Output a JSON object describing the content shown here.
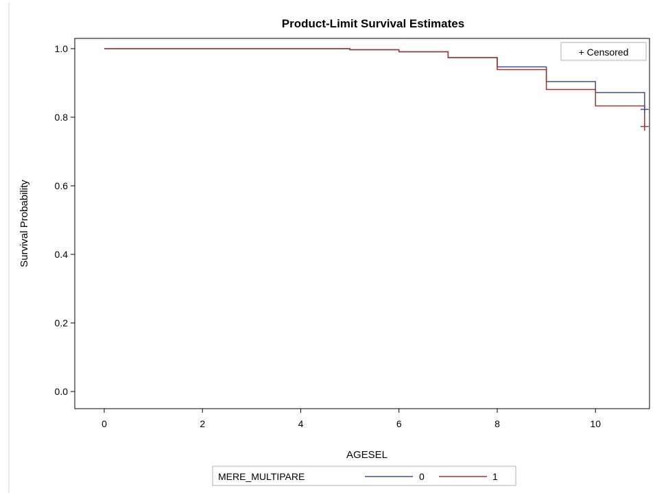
{
  "chart_data": {
    "type": "line",
    "title": "Product-Limit Survival Estimates",
    "xlabel": "AGESEL",
    "ylabel": "Survival Probability",
    "xlim": [
      -0.6,
      11.1
    ],
    "ylim": [
      -0.05,
      1.03
    ],
    "xticks": [
      0,
      2,
      4,
      6,
      8,
      10
    ],
    "yticks": [
      0.0,
      0.2,
      0.4,
      0.6,
      0.8,
      1.0
    ],
    "grid": false,
    "censored_legend": "+ Censored",
    "legend": {
      "title": "MERE_MULTIPARE",
      "placement": "bottom"
    },
    "series": [
      {
        "name": "0",
        "color": "#3a4f96",
        "steps": [
          [
            0,
            1.0
          ],
          [
            5,
            0.997
          ],
          [
            6,
            0.991
          ],
          [
            7,
            0.974
          ],
          [
            8,
            0.947
          ],
          [
            9,
            0.904
          ],
          [
            10,
            0.872
          ],
          [
            11,
            0.823
          ]
        ],
        "end_x": 11,
        "censored": [
          [
            11,
            0.823
          ]
        ]
      },
      {
        "name": "1",
        "color": "#a8322a",
        "steps": [
          [
            0,
            1.0
          ],
          [
            5,
            0.997
          ],
          [
            6,
            0.991
          ],
          [
            7,
            0.974
          ],
          [
            8,
            0.939
          ],
          [
            9,
            0.881
          ],
          [
            10,
            0.833
          ],
          [
            11,
            0.773
          ]
        ],
        "end_x": 11,
        "censored": [
          [
            11,
            0.773
          ]
        ]
      }
    ]
  }
}
